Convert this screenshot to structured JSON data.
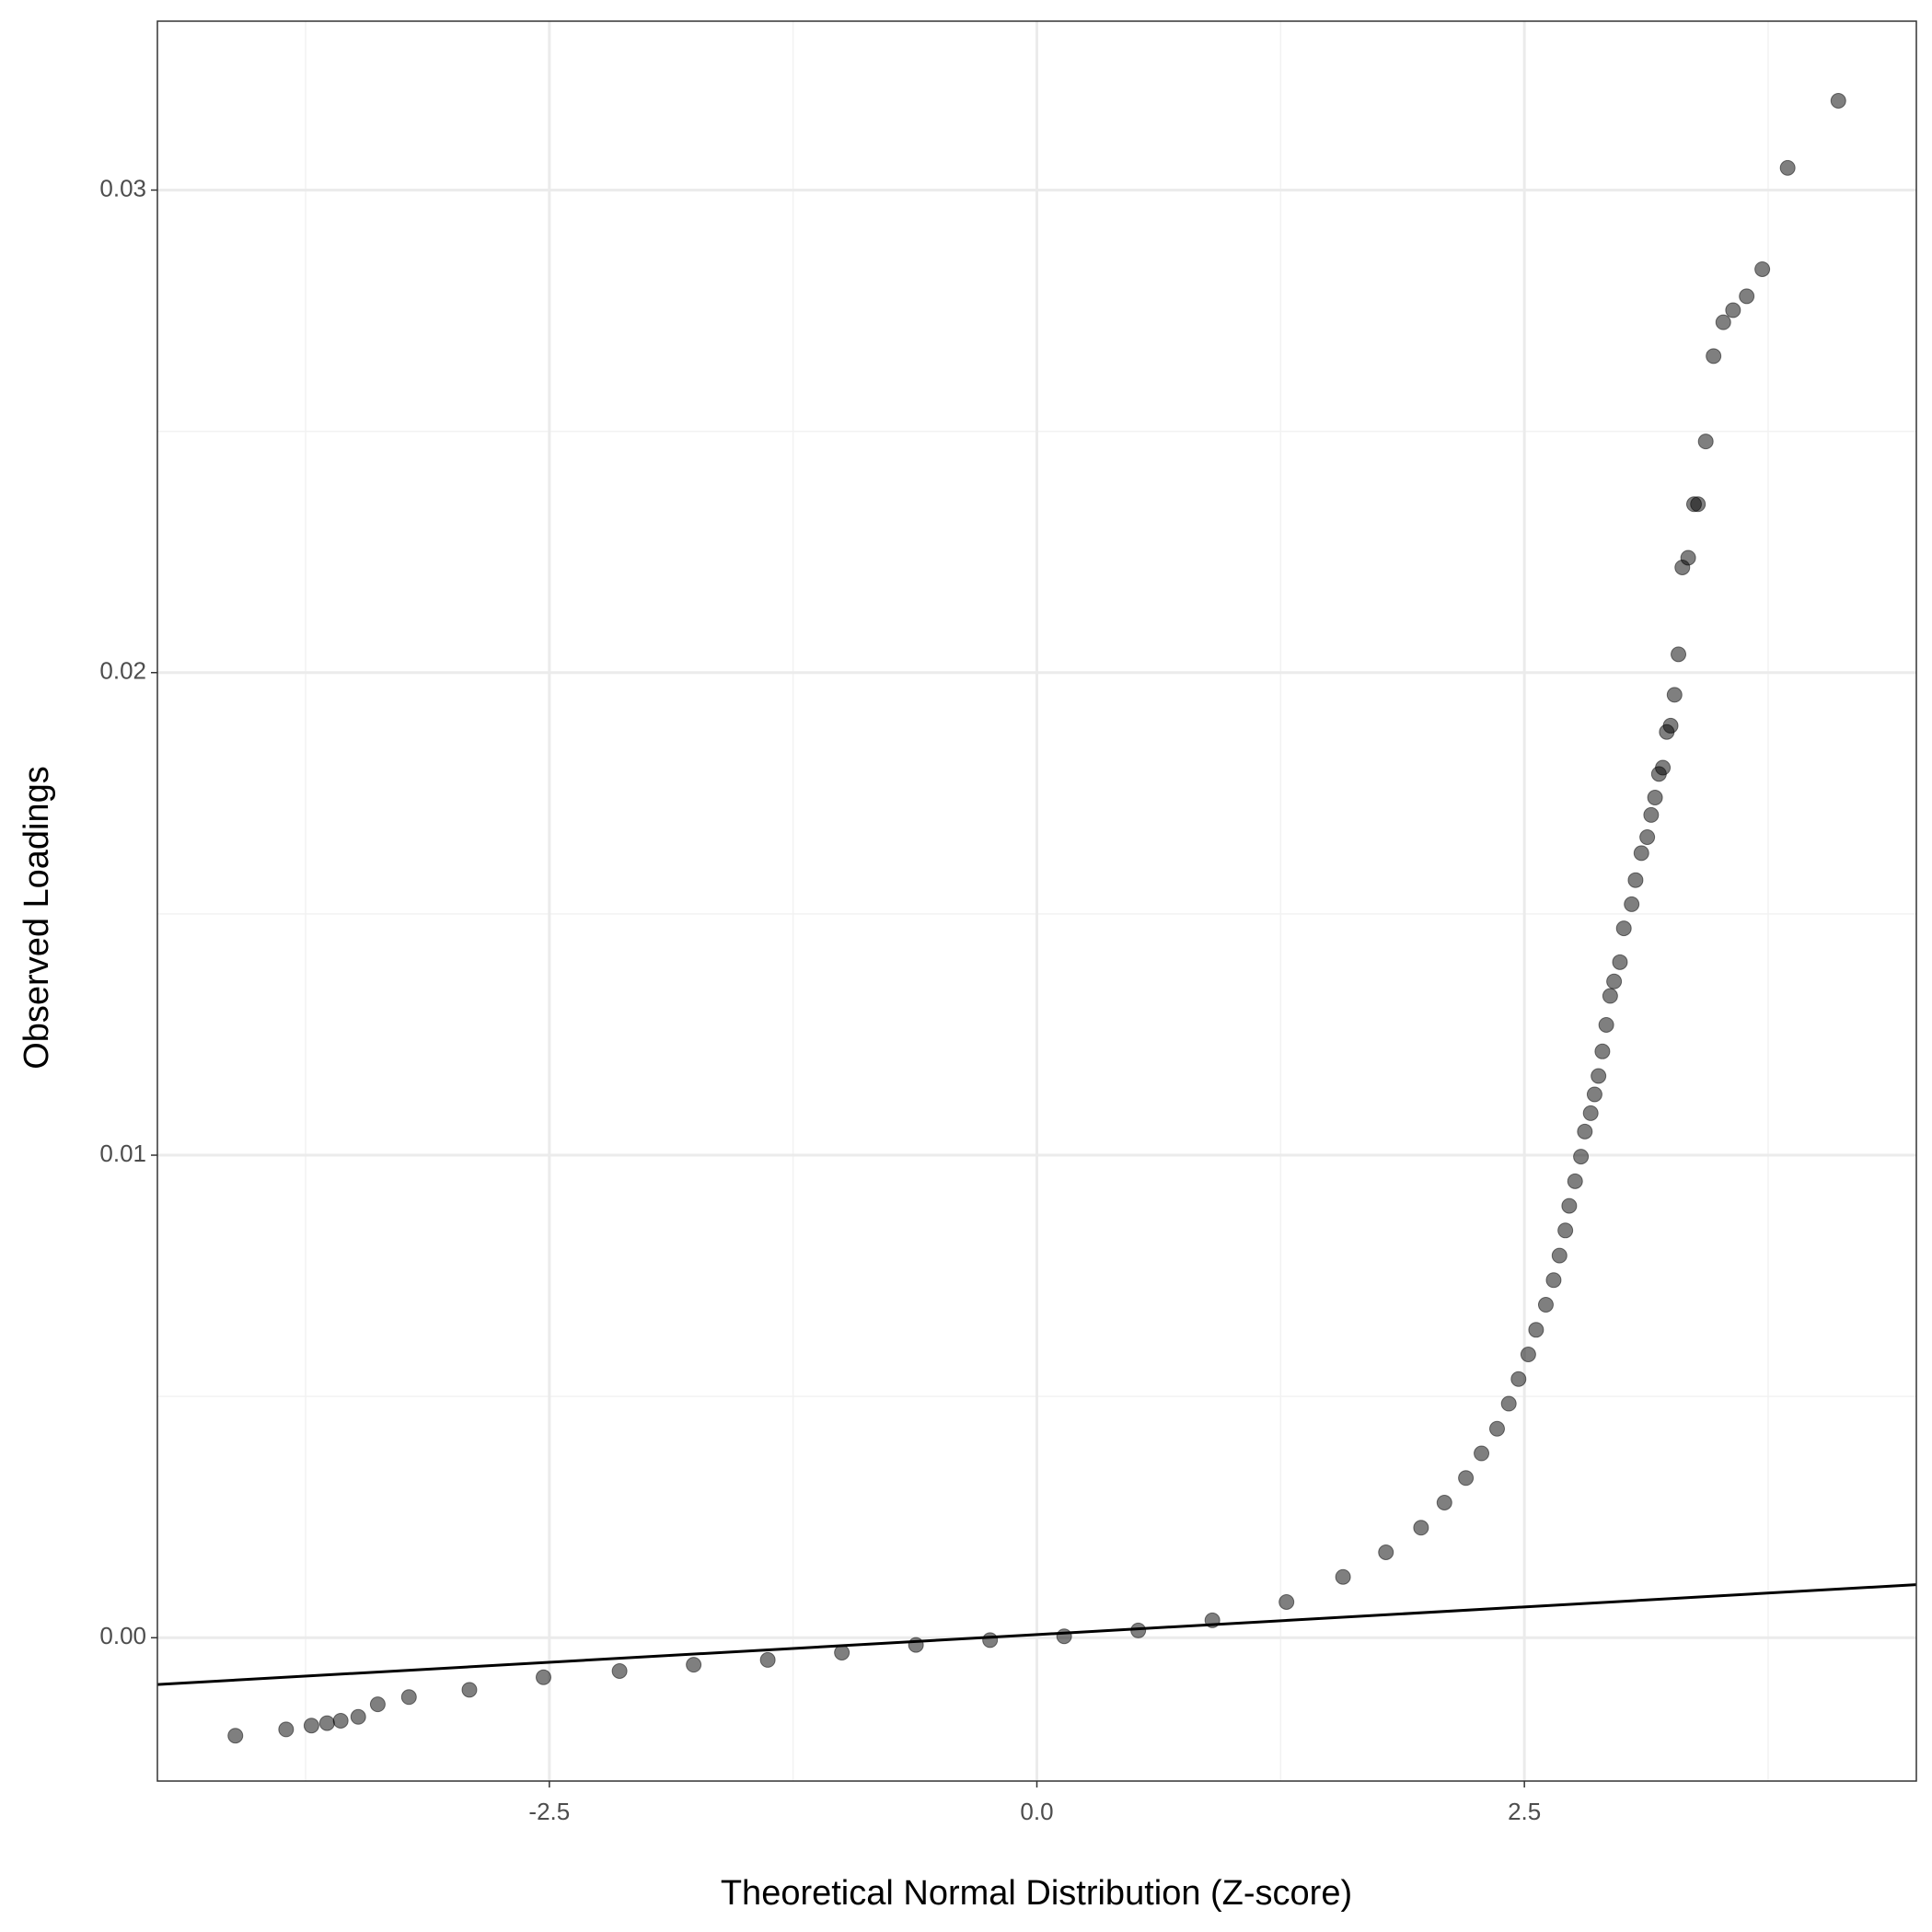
{
  "chart_data": {
    "type": "scatter",
    "x_label": "Theoretical Normal Distribution (Z-score)",
    "y_label": "Observed Loadings",
    "xlim": [
      -4.51,
      4.51
    ],
    "ylim": [
      -0.00297,
      0.0335
    ],
    "xticks": [
      -2.5,
      {
        "value": 0,
        "label": "0.0"
      },
      2.5
    ],
    "yticks": [
      {
        "value": 0,
        "label": "0.00"
      },
      0.01,
      0.02,
      0.03
    ],
    "minor_xticks": [
      -3.75,
      -1.25,
      1.25,
      3.75
    ],
    "minor_yticks": [
      0.005,
      0.015,
      0.025
    ],
    "grid": true,
    "color": "#000000",
    "reference_line": {
      "x": [
        -4.51,
        4.51
      ],
      "y": [
        -0.00097,
        0.0011
      ],
      "color": "#000000"
    },
    "x": [
      -4.11,
      -3.85,
      -3.72,
      -3.64,
      -3.57,
      -3.48,
      -3.38,
      -3.22,
      -2.91,
      -2.53,
      -2.14,
      -1.76,
      -1.38,
      -1.0,
      -0.62,
      -0.24,
      0.14,
      0.52,
      0.9,
      1.28,
      1.57,
      1.79,
      1.97,
      2.09,
      2.2,
      2.28,
      2.36,
      2.42,
      2.47,
      2.52,
      2.56,
      2.61,
      2.65,
      2.68,
      2.71,
      2.73,
      2.76,
      2.79,
      2.81,
      2.84,
      2.86,
      2.88,
      2.9,
      2.92,
      2.94,
      2.96,
      2.99,
      3.01,
      3.05,
      3.07,
      3.1,
      3.13,
      3.15,
      3.17,
      3.19,
      3.21,
      3.23,
      3.25,
      3.27,
      3.29,
      3.31,
      3.34,
      3.37,
      3.39,
      3.43,
      3.47,
      3.52,
      3.57,
      3.64,
      3.72,
      3.85,
      4.11
    ],
    "y": [
      -0.00203,
      -0.0019,
      -0.00182,
      -0.00177,
      -0.00172,
      -0.00164,
      -0.00138,
      -0.00123,
      -0.00108,
      -0.00082,
      -0.00069,
      -0.00056,
      -0.00046,
      -0.00031,
      -0.00015,
      -5e-05,
      3e-05,
      0.00015,
      0.00036,
      0.00074,
      0.00126,
      0.00177,
      0.00228,
      0.0028,
      0.00331,
      0.00382,
      0.00433,
      0.00485,
      0.00536,
      0.00587,
      0.00638,
      0.0069,
      0.00741,
      0.00792,
      0.00844,
      0.00895,
      0.00946,
      0.00997,
      0.01049,
      0.01087,
      0.01126,
      0.01164,
      0.01215,
      0.0127,
      0.0133,
      0.0136,
      0.014,
      0.0147,
      0.0152,
      0.0157,
      0.01626,
      0.01659,
      0.01705,
      0.01741,
      0.0179,
      0.01803,
      0.01877,
      0.0189,
      0.01954,
      0.02038,
      0.02218,
      0.02238,
      0.02349,
      0.02349,
      0.02479,
      0.02656,
      0.02726,
      0.02751,
      0.0278,
      0.02836,
      0.03046,
      0.03185
    ]
  }
}
